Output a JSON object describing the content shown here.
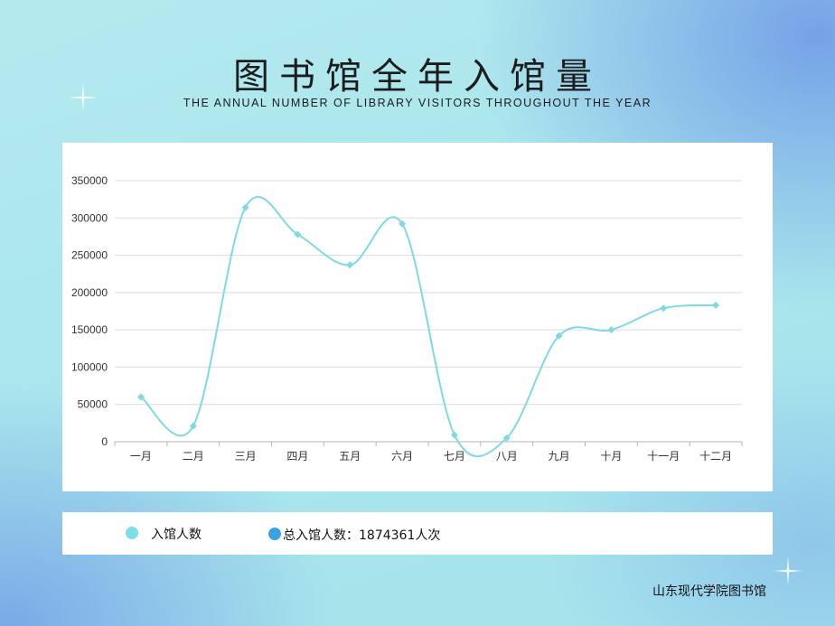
{
  "header": {
    "title": "图书馆全年入馆量",
    "subtitle": "THE ANNUAL NUMBER OF LIBRARY VISITORS THROUGHOUT THE YEAR"
  },
  "legend": {
    "series_label": "入馆人数",
    "total_label": "总入馆人数：1874361人次",
    "series_color": "#7ddfe6",
    "total_color": "#3aa3e3"
  },
  "footer": {
    "organization": "山东现代学院图书馆"
  },
  "chart_data": {
    "type": "line",
    "title": "图书馆全年入馆量",
    "categories": [
      "一月",
      "二月",
      "三月",
      "四月",
      "五月",
      "六月",
      "七月",
      "八月",
      "九月",
      "十月",
      "十一月",
      "十二月"
    ],
    "series": [
      {
        "name": "入馆人数",
        "values": [
          60000,
          21000,
          314000,
          278000,
          237000,
          292000,
          9000,
          5000,
          142000,
          150000,
          179000,
          183000
        ]
      }
    ],
    "ylim": [
      0,
      350000
    ],
    "yticks": [
      0,
      50000,
      100000,
      150000,
      200000,
      250000,
      300000,
      350000
    ],
    "grid": true,
    "smooth": true,
    "line_color": "#7fd9e3"
  }
}
